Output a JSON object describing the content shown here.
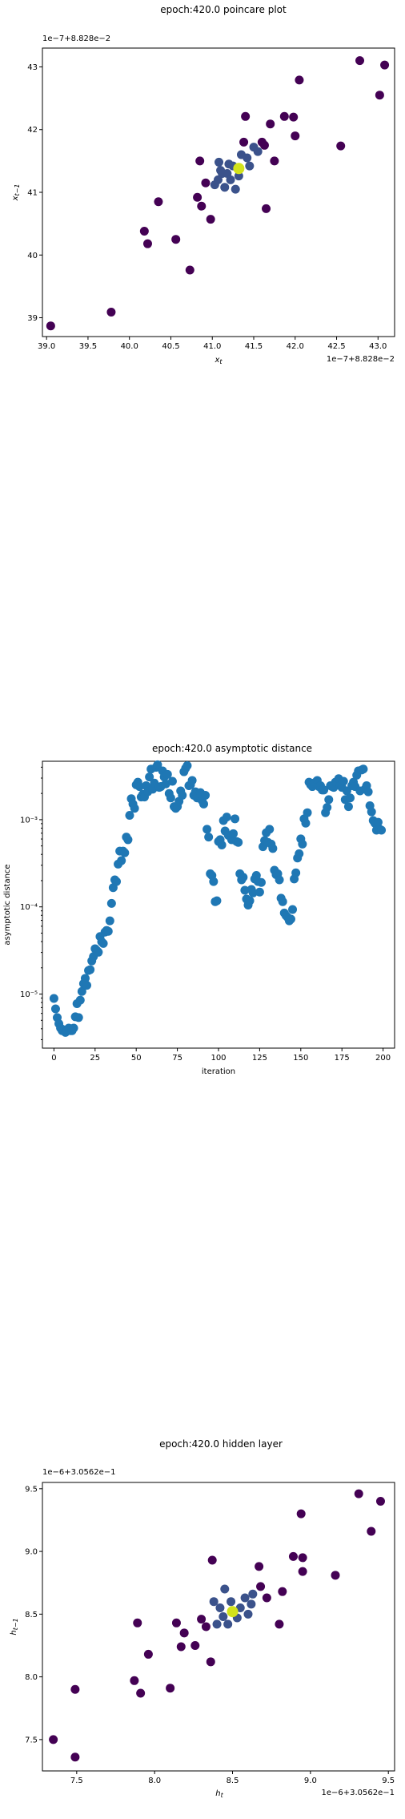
{
  "chart_data": [
    {
      "type": "scatter",
      "title": "epoch:420.0 poincare plot",
      "xlabel": "x_t",
      "ylabel": "x_{t-1}",
      "x_offset_text": "1e−7+8.828e−2",
      "y_offset_text": "1e−7+8.828e−2",
      "xlim": [
        38.95,
        43.2
      ],
      "ylim": [
        38.7,
        43.3
      ],
      "xticks": [
        39.0,
        39.5,
        40.0,
        40.5,
        41.0,
        41.5,
        42.0,
        42.5,
        43.0
      ],
      "xtick_labels": [
        "39.0",
        "39.5",
        "40.0",
        "40.5",
        "41.0",
        "41.5",
        "42.0",
        "42.5",
        "43.0"
      ],
      "yticks": [
        39,
        40,
        41,
        42,
        43
      ],
      "ytick_labels": [
        "39",
        "40",
        "41",
        "42",
        "43"
      ],
      "colormap": "viridis",
      "point_color": "#440154",
      "mid_color": "#3b528b",
      "highlight_color": "#d2e21b",
      "points": [
        [
          39.05,
          38.87
        ],
        [
          39.78,
          39.09
        ],
        [
          40.18,
          40.38
        ],
        [
          40.22,
          40.18
        ],
        [
          40.35,
          40.85
        ],
        [
          40.56,
          40.25
        ],
        [
          40.73,
          39.76
        ],
        [
          40.82,
          40.92
        ],
        [
          40.85,
          41.5
        ],
        [
          40.87,
          40.78
        ],
        [
          40.92,
          41.15
        ],
        [
          40.98,
          40.57
        ],
        [
          41.03,
          41.12
        ],
        [
          41.07,
          41.2
        ],
        [
          41.08,
          41.48
        ],
        [
          41.12,
          41.3
        ],
        [
          41.15,
          41.08
        ],
        [
          41.18,
          41.3
        ],
        [
          41.22,
          41.2
        ],
        [
          41.25,
          41.42
        ],
        [
          41.28,
          41.05
        ],
        [
          41.32,
          41.26
        ],
        [
          41.35,
          41.6
        ],
        [
          41.38,
          41.8
        ],
        [
          41.4,
          42.21
        ],
        [
          41.45,
          41.42
        ],
        [
          41.5,
          41.72
        ],
        [
          41.6,
          41.8
        ],
        [
          41.63,
          41.75
        ],
        [
          41.65,
          40.74
        ],
        [
          41.7,
          42.09
        ],
        [
          41.75,
          41.5
        ],
        [
          41.87,
          42.21
        ],
        [
          41.98,
          42.2
        ],
        [
          42.05,
          42.79
        ],
        [
          42.0,
          41.9
        ],
        [
          42.55,
          41.74
        ],
        [
          42.78,
          43.1
        ],
        [
          43.02,
          42.55
        ],
        [
          43.08,
          43.03
        ],
        [
          41.1,
          41.35
        ],
        [
          41.42,
          41.55
        ],
        [
          41.55,
          41.65
        ],
        [
          41.2,
          41.45
        ]
      ],
      "highlight": [
        41.32,
        41.38
      ]
    },
    {
      "type": "scatter",
      "title": "epoch:420.0 asymptotic distance",
      "xlabel": "iteration",
      "ylabel": "asymptotic distance",
      "yscale": "log",
      "xlim": [
        -7,
        207
      ],
      "ylim_log10": [
        -5.62,
        -2.33
      ],
      "xticks": [
        0,
        25,
        50,
        75,
        100,
        125,
        150,
        175,
        200
      ],
      "xtick_labels": [
        "0",
        "25",
        "50",
        "75",
        "100",
        "125",
        "150",
        "175",
        "200"
      ],
      "yticks_log10": [
        -5,
        -4,
        -3
      ],
      "ytick_labels": [
        "10⁻⁵",
        "10⁻⁴",
        "10⁻³"
      ],
      "point_color": "#1f77b4",
      "log10_values": [
        -5.05,
        -5.17,
        -5.27,
        -5.34,
        -5.39,
        -5.42,
        -5.41,
        -5.44,
        -5.42,
        -5.39,
        -5.42,
        -5.42,
        -5.39,
        -5.26,
        -5.11,
        -5.27,
        -5.07,
        -4.97,
        -4.88,
        -4.82,
        -4.9,
        -4.73,
        -4.72,
        -4.62,
        -4.57,
        -4.48,
        -4.5,
        -4.52,
        -4.34,
        -4.4,
        -4.42,
        -4.29,
        -4.27,
        -4.28,
        -4.16,
        -3.96,
        -3.78,
        -3.69,
        -3.71,
        -3.51,
        -3.36,
        -3.47,
        -3.36,
        -3.38,
        -3.2,
        -3.23,
        -2.95,
        -2.76,
        -2.82,
        -2.87,
        -2.6,
        -2.57,
        -2.62,
        -2.74,
        -2.71,
        -2.74,
        -2.61,
        -2.68,
        -2.51,
        -2.42,
        -2.65,
        -2.58,
        -2.4,
        -2.37,
        -2.63,
        -2.62,
        -2.44,
        -2.51,
        -2.59,
        -2.48,
        -2.7,
        -2.75,
        -2.56,
        -2.85,
        -2.87,
        -2.85,
        -2.79,
        -2.67,
        -2.72,
        -2.45,
        -2.41,
        -2.38,
        -2.61,
        -2.6,
        -2.55,
        -2.72,
        -2.68,
        -2.75,
        -2.72,
        -2.69,
        -2.78,
        -2.82,
        -2.72,
        -3.11,
        -3.2,
        -3.62,
        -3.64,
        -3.71,
        -3.94,
        -3.93,
        -3.25,
        -3.23,
        -3.29,
        -3.01,
        -3.13,
        -2.97,
        -3.18,
        -3.19,
        -3.23,
        -3.16,
        -2.99,
        -3.25,
        -3.26,
        -3.62,
        -3.69,
        -3.66,
        -3.81,
        -3.91,
        -3.98,
        -3.93,
        -3.8,
        -3.84,
        -3.68,
        -3.64,
        -3.71,
        -3.83,
        -3.72,
        -3.31,
        -3.24,
        -3.15,
        -3.26,
        -3.11,
        -3.28,
        -3.33,
        -3.58,
        -3.63,
        -3.62,
        -3.69,
        -3.9,
        -3.94,
        -4.07,
        -4.1,
        -4.12,
        -4.16,
        -4.14,
        -4.03,
        -3.68,
        -3.61,
        -3.44,
        -3.39,
        -3.22,
        -3.28,
        -2.99,
        -3.04,
        -2.92,
        -2.57,
        -2.6,
        -2.62,
        -2.58,
        -2.57,
        -2.55,
        -2.62,
        -2.61,
        -2.66,
        -2.66,
        -2.92,
        -2.86,
        -2.77,
        -2.61,
        -2.62,
        -2.63,
        -2.57,
        -2.58,
        -2.53,
        -2.61,
        -2.63,
        -2.56,
        -2.77,
        -2.67,
        -2.85,
        -2.75,
        -2.61,
        -2.57,
        -2.62,
        -2.49,
        -2.44,
        -2.67,
        -2.43,
        -2.42,
        -2.65,
        -2.61,
        -2.68,
        -2.84,
        -2.91,
        -3.01,
        -3.04,
        -3.12,
        -3.03,
        -3.11,
        -3.12
      ]
    },
    {
      "type": "scatter",
      "title": "epoch:420.0 hidden layer",
      "xlabel": "h_t",
      "ylabel": "h_{t-1}",
      "x_offset_text": "1e−6+3.0562e−1",
      "y_offset_text": "1e−6+3.0562e−1",
      "xlim": [
        7.28,
        9.54
      ],
      "ylim": [
        7.25,
        9.55
      ],
      "xticks": [
        7.5,
        8.0,
        8.5,
        9.0,
        9.5
      ],
      "xtick_labels": [
        "7.5",
        "8.0",
        "8.5",
        "9.0",
        "9.5"
      ],
      "yticks": [
        7.5,
        8.0,
        8.5,
        9.0,
        9.5
      ],
      "ytick_labels": [
        "7.5",
        "8.0",
        "8.5",
        "9.0",
        "9.5"
      ],
      "colormap": "viridis",
      "point_color": "#440154",
      "mid_color": "#3b528b",
      "highlight_color": "#d2e21b",
      "points": [
        [
          7.35,
          7.5
        ],
        [
          7.49,
          7.36
        ],
        [
          7.49,
          7.9
        ],
        [
          7.87,
          7.97
        ],
        [
          7.89,
          8.43
        ],
        [
          7.91,
          7.87
        ],
        [
          7.96,
          8.18
        ],
        [
          8.1,
          7.91
        ],
        [
          8.14,
          8.43
        ],
        [
          8.17,
          8.24
        ],
        [
          8.19,
          8.35
        ],
        [
          8.26,
          8.25
        ],
        [
          8.3,
          8.46
        ],
        [
          8.33,
          8.4
        ],
        [
          8.36,
          8.12
        ],
        [
          8.37,
          8.93
        ],
        [
          8.38,
          8.6
        ],
        [
          8.42,
          8.55
        ],
        [
          8.44,
          8.48
        ],
        [
          8.47,
          8.42
        ],
        [
          8.49,
          8.6
        ],
        [
          8.53,
          8.47
        ],
        [
          8.55,
          8.55
        ],
        [
          8.58,
          8.63
        ],
        [
          8.6,
          8.5
        ],
        [
          8.63,
          8.66
        ],
        [
          8.67,
          8.88
        ],
        [
          8.68,
          8.72
        ],
        [
          8.72,
          8.63
        ],
        [
          8.8,
          8.42
        ],
        [
          8.82,
          8.68
        ],
        [
          8.89,
          8.96
        ],
        [
          8.94,
          9.3
        ],
        [
          8.95,
          8.84
        ],
        [
          8.95,
          8.95
        ],
        [
          9.16,
          8.81
        ],
        [
          9.31,
          9.46
        ],
        [
          9.39,
          9.16
        ],
        [
          9.45,
          9.4
        ],
        [
          8.45,
          8.7
        ],
        [
          8.62,
          8.58
        ],
        [
          8.4,
          8.42
        ]
      ],
      "highlight": [
        8.5,
        8.52
      ]
    }
  ]
}
